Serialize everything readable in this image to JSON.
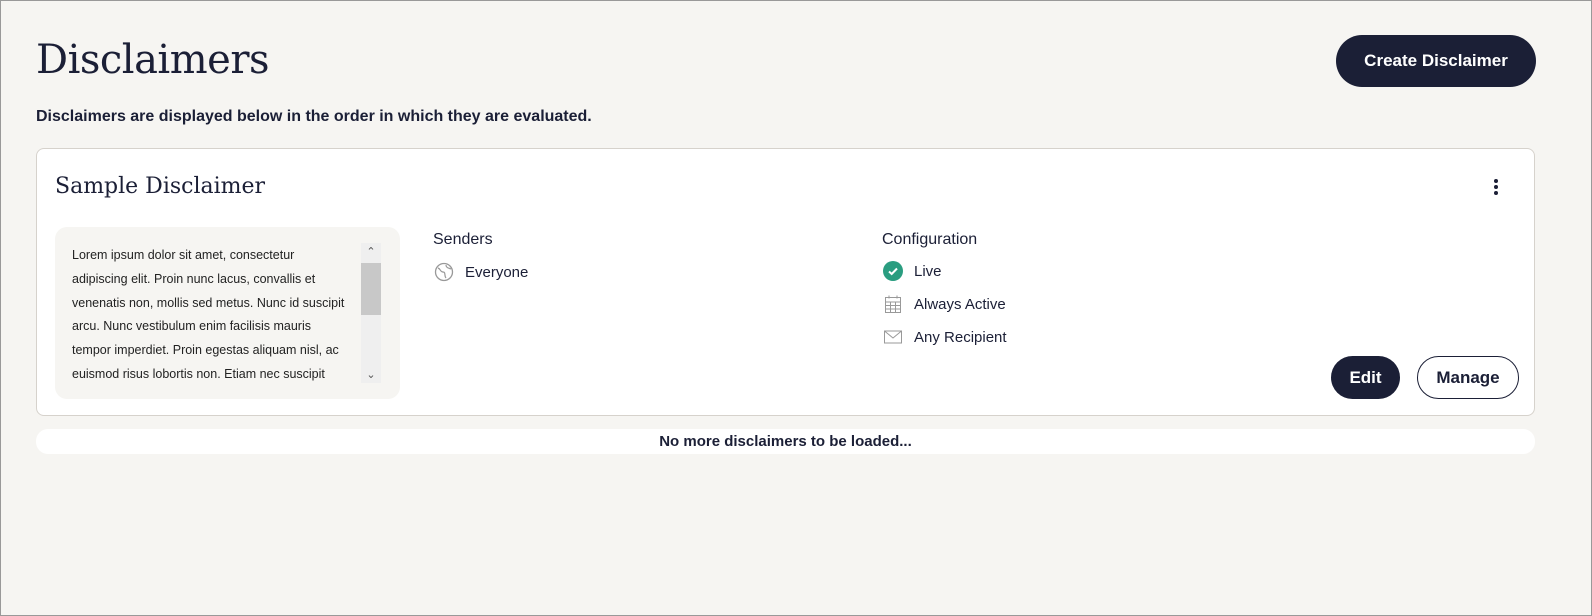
{
  "page": {
    "title": "Disclaimers",
    "subtitle": "Disclaimers are displayed below in the order in which they are evaluated.",
    "create_label": "Create Disclaimer"
  },
  "card": {
    "title": "Sample Disclaimer",
    "body": "Lorem ipsum dolor sit amet, consectetur adipiscing elit. Proin nunc lacus, convallis et venenatis non, mollis sed metus. Nunc id suscipit arcu. Nunc vestibulum enim facilisis mauris tempor imperdiet. Proin egestas aliquam nisl, ac euismod risus lobortis non. Etiam nec suscipit",
    "senders_heading": "Senders",
    "sender": "Everyone",
    "config_heading": "Configuration",
    "status": "Live",
    "schedule": "Always Active",
    "recipients": "Any Recipient",
    "edit_label": "Edit",
    "manage_label": "Manage",
    "status_color": "#2a9d80"
  },
  "footer": {
    "no_more": "No more disclaimers to be loaded..."
  }
}
